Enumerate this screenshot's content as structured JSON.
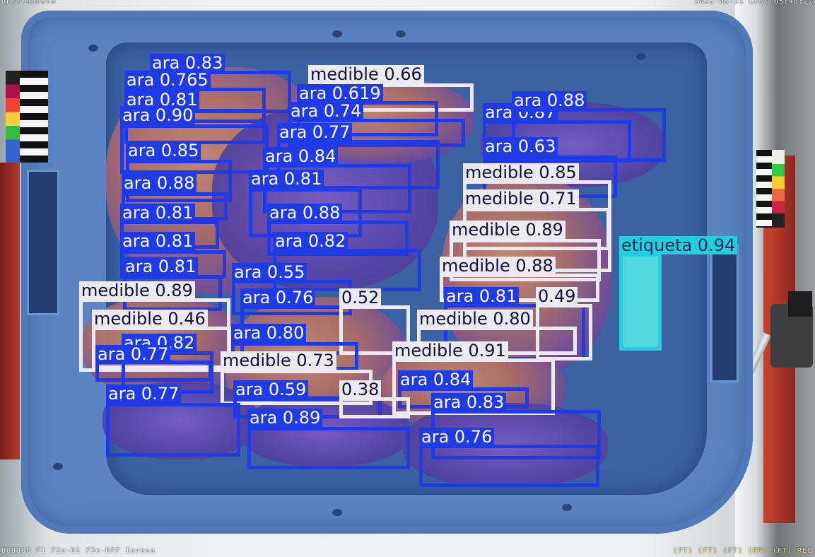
{
  "overlay": {
    "top_left": "DFMM-Subsea",
    "top_right": "2025-05-31 LEST 05:48:22",
    "bottom_left": "000000 F1 F2e-D1 F2e-DFF Invesa",
    "bottom_right": "(FT) (FT) (FT) (EP) (FT) REC"
  },
  "colors": {
    "ara": "#1f3be8",
    "medible": "#eceaf0",
    "etiqueta": "#22cfe0"
  },
  "detections": [
    {
      "label": "ara 0.83",
      "cls": "ara"
    },
    {
      "label": "ara 0.765",
      "cls": "ara"
    },
    {
      "label": "medible 0.66",
      "cls": "medible"
    },
    {
      "label": "ara 0.619",
      "cls": "ara"
    },
    {
      "label": "ara 0.81",
      "cls": "ara"
    },
    {
      "label": "ara 0.74",
      "cls": "ara"
    },
    {
      "label": "ara 0.90",
      "cls": "ara"
    },
    {
      "label": "ara 0.77",
      "cls": "ara"
    },
    {
      "label": "ara 0.87",
      "cls": "ara"
    },
    {
      "label": "ara 0.88",
      "cls": "ara"
    },
    {
      "label": "ara 0.85",
      "cls": "ara"
    },
    {
      "label": "ara 0.84",
      "cls": "ara"
    },
    {
      "label": "ara 0.63",
      "cls": "ara"
    },
    {
      "label": "ara 0.88",
      "cls": "ara"
    },
    {
      "label": "ara 0.81",
      "cls": "ara"
    },
    {
      "label": "medible 0.85",
      "cls": "medible"
    },
    {
      "label": "medible 0.71",
      "cls": "medible"
    },
    {
      "label": "ara 0.81",
      "cls": "ara"
    },
    {
      "label": "ara 0.88",
      "cls": "ara"
    },
    {
      "label": "medible 0.89",
      "cls": "medible"
    },
    {
      "label": "ara 0.81",
      "cls": "ara"
    },
    {
      "label": "ara 0.82",
      "cls": "ara"
    },
    {
      "label": "etiqueta 0.94",
      "cls": "etiqueta"
    },
    {
      "label": "ara 0.81",
      "cls": "ara"
    },
    {
      "label": "medible 0.88",
      "cls": "medible"
    },
    {
      "label": "ara 0.55",
      "cls": "ara"
    },
    {
      "label": "medible 0.89",
      "cls": "medible"
    },
    {
      "label": "ara 0.76",
      "cls": "ara"
    },
    {
      "label": "0.52",
      "cls": "medible"
    },
    {
      "label": "ara 0.81",
      "cls": "ara"
    },
    {
      "label": "0.49",
      "cls": "medible"
    },
    {
      "label": "medible 0.46",
      "cls": "medible"
    },
    {
      "label": "medible 0.80",
      "cls": "medible"
    },
    {
      "label": "ara 0.80",
      "cls": "ara"
    },
    {
      "label": "ara 0.82",
      "cls": "ara"
    },
    {
      "label": "ara 0.77",
      "cls": "ara"
    },
    {
      "label": "medible 0.91",
      "cls": "medible"
    },
    {
      "label": "medible 0.73",
      "cls": "medible"
    },
    {
      "label": "ara 0.84",
      "cls": "ara"
    },
    {
      "label": "ara 0.59",
      "cls": "ara"
    },
    {
      "label": "0.38",
      "cls": "medible"
    },
    {
      "label": "ara 0.77",
      "cls": "ara"
    },
    {
      "label": "ara 0.83",
      "cls": "ara"
    },
    {
      "label": "ara 0.89",
      "cls": "ara"
    },
    {
      "label": "ara 0.76",
      "cls": "ara"
    }
  ]
}
